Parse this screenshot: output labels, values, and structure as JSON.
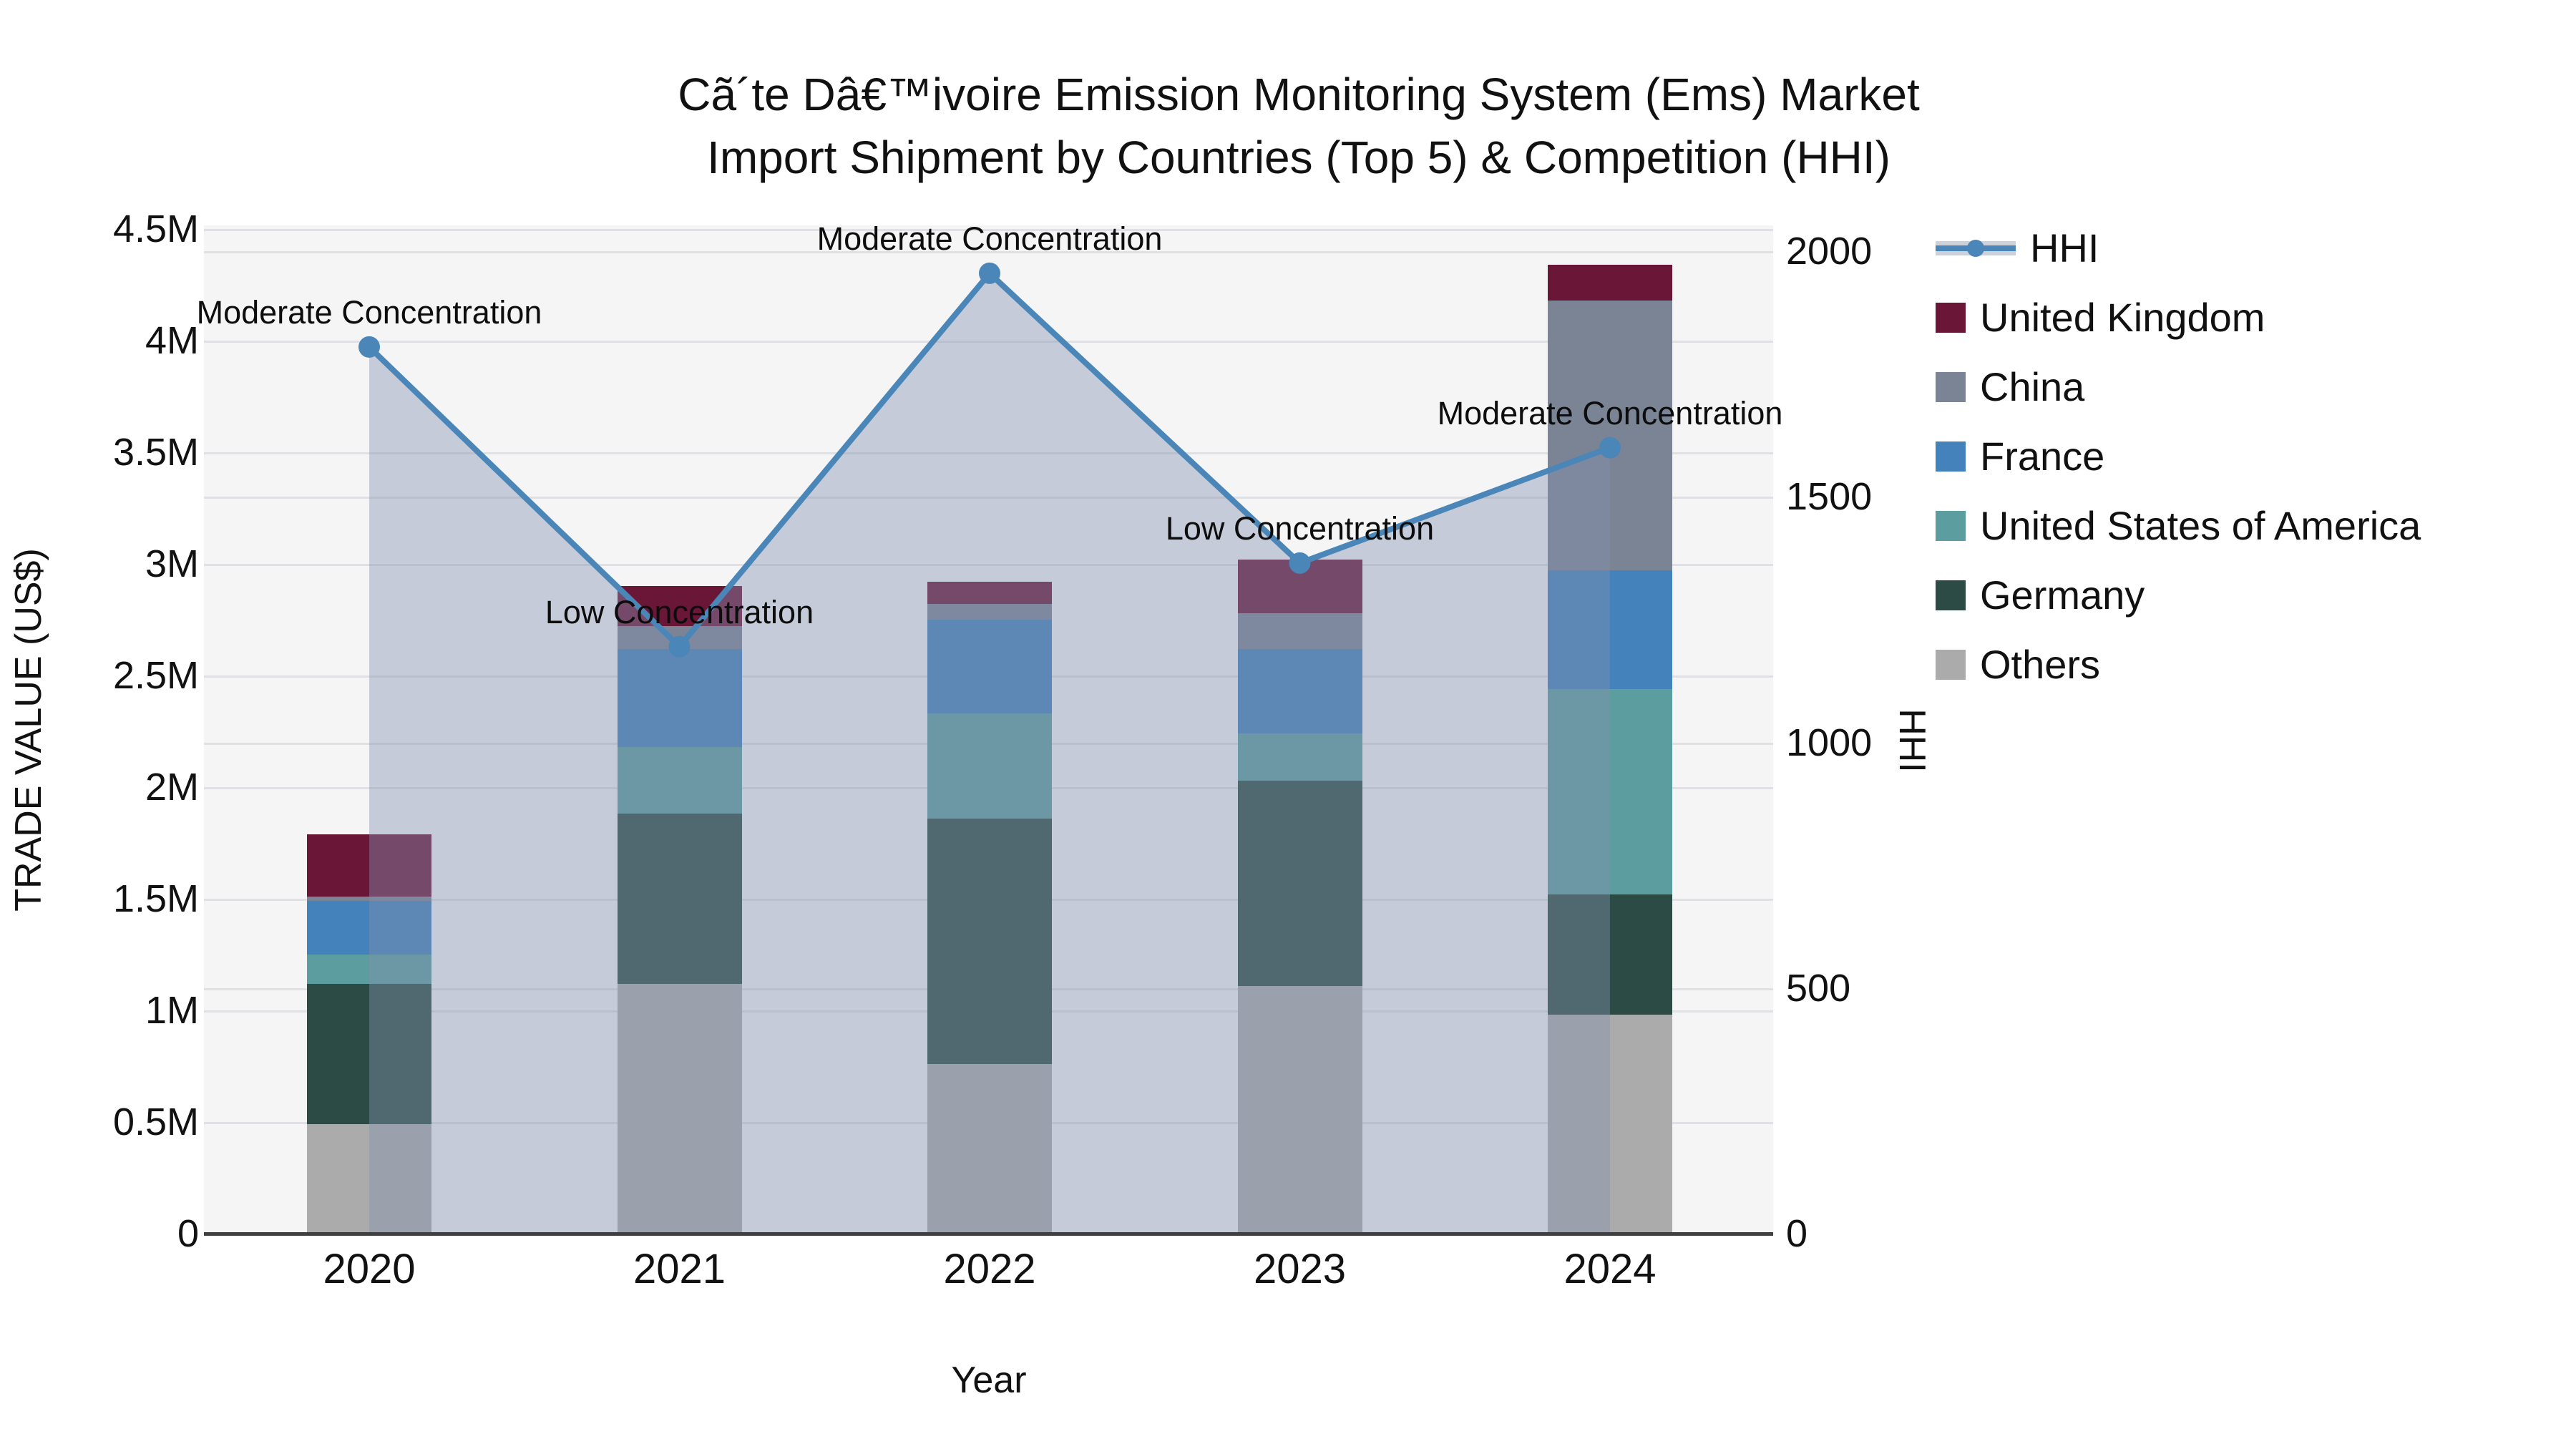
{
  "title": {
    "line1": "Cã´te Dâ€™ivoire Emission Monitoring System (Ems) Market",
    "line2": "Import Shipment by Countries (Top 5) & Competition (HHI)"
  },
  "legend": {
    "items": [
      {
        "label": "HHI",
        "type": "line",
        "color": "#4A86B8"
      },
      {
        "label": "United Kingdom",
        "type": "swatch",
        "color": "#6A1637"
      },
      {
        "label": "China",
        "type": "swatch",
        "color": "#7A8495"
      },
      {
        "label": "France",
        "type": "swatch",
        "color": "#4382BB"
      },
      {
        "label": "United States of America",
        "type": "swatch",
        "color": "#5C9EA0"
      },
      {
        "label": "Germany",
        "type": "swatch",
        "color": "#2C4B44"
      },
      {
        "label": "Others",
        "type": "swatch",
        "color": "#ABABAB"
      }
    ]
  },
  "chart_data": {
    "type": "combo-stacked-bar-line",
    "title": "Cã´te Dâ€™ivoire Emission Monitoring System (Ems) Market Import Shipment by Countries (Top 5) & Competition (HHI)",
    "x": [
      "2020",
      "2021",
      "2022",
      "2023",
      "2024"
    ],
    "xlabel": "Year",
    "bars": {
      "ylabel": "TRADE VALUE (US$)",
      "unit": "million US$",
      "ylim": [
        0,
        4.5
      ],
      "yticks": [
        {
          "label": "0",
          "value": 0
        },
        {
          "label": "0.5M",
          "value": 0.5
        },
        {
          "label": "1M",
          "value": 1
        },
        {
          "label": "1.5M",
          "value": 1.5
        },
        {
          "label": "2M",
          "value": 2
        },
        {
          "label": "2.5M",
          "value": 2.5
        },
        {
          "label": "3M",
          "value": 3
        },
        {
          "label": "3.5M",
          "value": 3.5
        },
        {
          "label": "4M",
          "value": 4
        },
        {
          "label": "4.5M",
          "value": 4.5
        }
      ],
      "stack_order_bottom_to_top": [
        "Others",
        "Germany",
        "United States of America",
        "France",
        "China",
        "United Kingdom"
      ],
      "series": [
        {
          "name": "Others",
          "color": "#ABABAB",
          "values": [
            0.49,
            1.12,
            0.76,
            1.11,
            0.98
          ]
        },
        {
          "name": "Germany",
          "color": "#2C4B44",
          "values": [
            0.63,
            0.76,
            1.1,
            0.92,
            0.54
          ]
        },
        {
          "name": "United States of America",
          "color": "#5C9EA0",
          "values": [
            0.13,
            0.3,
            0.47,
            0.21,
            0.92
          ]
        },
        {
          "name": "France",
          "color": "#4382BB",
          "values": [
            0.24,
            0.44,
            0.42,
            0.38,
            0.53
          ]
        },
        {
          "name": "China",
          "color": "#7A8495",
          "values": [
            0.02,
            0.1,
            0.07,
            0.16,
            1.21
          ]
        },
        {
          "name": "United Kingdom",
          "color": "#6A1637",
          "values": [
            0.28,
            0.18,
            0.1,
            0.24,
            0.16
          ]
        }
      ],
      "totals": [
        1.79,
        2.9,
        2.92,
        3.02,
        4.34
      ]
    },
    "line": {
      "name": "HHI",
      "color": "#4A86B8",
      "fill": "rgba(130,145,175,0.42)",
      "ylabel": "HHI",
      "ylim": [
        0,
        2000
      ],
      "yticks": [
        {
          "label": "0",
          "value": 0
        },
        {
          "label": "500",
          "value": 500
        },
        {
          "label": "1000",
          "value": 1000
        },
        {
          "label": "1500",
          "value": 1500
        },
        {
          "label": "2000",
          "value": 2000
        }
      ],
      "values": [
        1805,
        1195,
        1955,
        1365,
        1600
      ],
      "annotations": [
        "Moderate Concentration",
        "Low Concentration",
        "Moderate Concentration",
        "Low Concentration",
        "Moderate Concentration"
      ]
    },
    "layout_hints": {
      "grid": true,
      "legend_position": "right",
      "area_fill_under_line": true
    }
  }
}
